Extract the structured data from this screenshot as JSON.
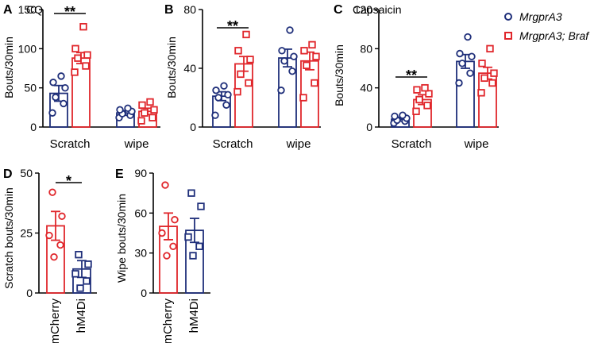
{
  "colors": {
    "blue": "#1f2f7a",
    "red": "#e0262b"
  },
  "legend": [
    {
      "label": "MrgprA3",
      "color": "#1f2f7a",
      "marker": "circle"
    },
    {
      "label": "MrgprA3; Braf",
      "color": "#e0262b",
      "marker": "square"
    }
  ],
  "chart_data": [
    {
      "panel": "A",
      "title": "CQ",
      "type": "bar",
      "ylabel": "Bouts/30min",
      "ylim": [
        0,
        150
      ],
      "yticks": [
        "0",
        "50",
        "100",
        "150"
      ],
      "categories": [
        "Scratch",
        "wipe"
      ],
      "series": [
        {
          "name": "MrgprA3",
          "means": [
            43,
            18
          ],
          "sem": [
            10,
            3
          ],
          "points": [
            [
              18,
              30,
              38,
              50,
              57,
              65
            ],
            [
              12,
              15,
              17,
              20,
              22,
              24
            ]
          ]
        },
        {
          "name": "MrgprA3; Braf",
          "means": [
            88,
            20
          ],
          "sem": [
            7,
            4
          ],
          "points": [
            [
              70,
              78,
              88,
              92,
              100,
              128
            ],
            [
              8,
              12,
              18,
              22,
              28,
              32
            ]
          ]
        }
      ],
      "significance": [
        {
          "category": "Scratch",
          "label": "**"
        }
      ]
    },
    {
      "panel": "B",
      "title": "",
      "type": "bar",
      "ylabel": "Bouts/30min",
      "ylim": [
        0,
        80
      ],
      "yticks": [
        "0",
        "40",
        "80"
      ],
      "categories": [
        "Scratch",
        "wipe"
      ],
      "series": [
        {
          "name": "MrgprA3",
          "means": [
            21,
            47
          ],
          "sem": [
            3,
            6
          ],
          "points": [
            [
              8,
              15,
              20,
              22,
              25,
              28
            ],
            [
              25,
              38,
              45,
              48,
              52,
              66
            ]
          ]
        },
        {
          "name": "MrgprA3; Braf",
          "means": [
            43,
            45
          ],
          "sem": [
            5,
            6
          ],
          "points": [
            [
              24,
              30,
              36,
              46,
              52,
              63
            ],
            [
              20,
              30,
              42,
              48,
              52,
              56
            ]
          ]
        }
      ],
      "significance": [
        {
          "category": "Scratch",
          "label": "**"
        }
      ]
    },
    {
      "panel": "C",
      "title": "Capsaicin",
      "type": "bar",
      "ylabel": "Bouts/30min",
      "ylim": [
        0,
        120
      ],
      "yticks": [
        "0",
        "40",
        "80",
        "120"
      ],
      "categories": [
        "Scratch",
        "wipe"
      ],
      "series": [
        {
          "name": "MrgprA3",
          "means": [
            8,
            67
          ],
          "sem": [
            2,
            7
          ],
          "points": [
            [
              4,
              6,
              7,
              9,
              11,
              12
            ],
            [
              45,
              55,
              65,
              72,
              75,
              92
            ]
          ]
        },
        {
          "name": "MrgprA3; Braf",
          "means": [
            28,
            55
          ],
          "sem": [
            5,
            6
          ],
          "points": [
            [
              16,
              22,
              28,
              34,
              38,
              40
            ],
            [
              35,
              45,
              50,
              55,
              65,
              80
            ]
          ]
        }
      ],
      "significance": [
        {
          "category": "Scratch",
          "label": "**"
        }
      ]
    },
    {
      "panel": "D",
      "title": "",
      "type": "bar",
      "ylabel": "Scratch bouts/30min",
      "ylim": [
        0,
        50
      ],
      "yticks": [
        "0",
        "25",
        "50"
      ],
      "categories": [
        "mCherry",
        "hM4Di"
      ],
      "bars": [
        {
          "name": "mCherry",
          "color": "red",
          "marker": "circle",
          "mean": 28,
          "sem": 6,
          "points": [
            42,
            32,
            24,
            20,
            15
          ]
        },
        {
          "name": "hM4Di",
          "color": "blue",
          "marker": "square",
          "mean": 10,
          "sem": 3.5,
          "points": [
            16,
            12,
            8,
            5,
            2
          ]
        }
      ],
      "significance": [
        {
          "between": [
            "mCherry",
            "hM4Di"
          ],
          "label": "*"
        }
      ]
    },
    {
      "panel": "E",
      "title": "",
      "type": "bar",
      "ylabel": "Wipe bouts/30min",
      "ylim": [
        0,
        90
      ],
      "yticks": [
        "0",
        "30",
        "60",
        "90"
      ],
      "categories": [
        "mCherry",
        "hM4Di"
      ],
      "bars": [
        {
          "name": "mCherry",
          "color": "red",
          "marker": "circle",
          "mean": 50,
          "sem": 10,
          "points": [
            81,
            55,
            45,
            35,
            28
          ]
        },
        {
          "name": "hM4Di",
          "color": "blue",
          "marker": "square",
          "mean": 47,
          "sem": 9,
          "points": [
            75,
            65,
            42,
            35,
            28
          ]
        }
      ],
      "significance": []
    }
  ]
}
